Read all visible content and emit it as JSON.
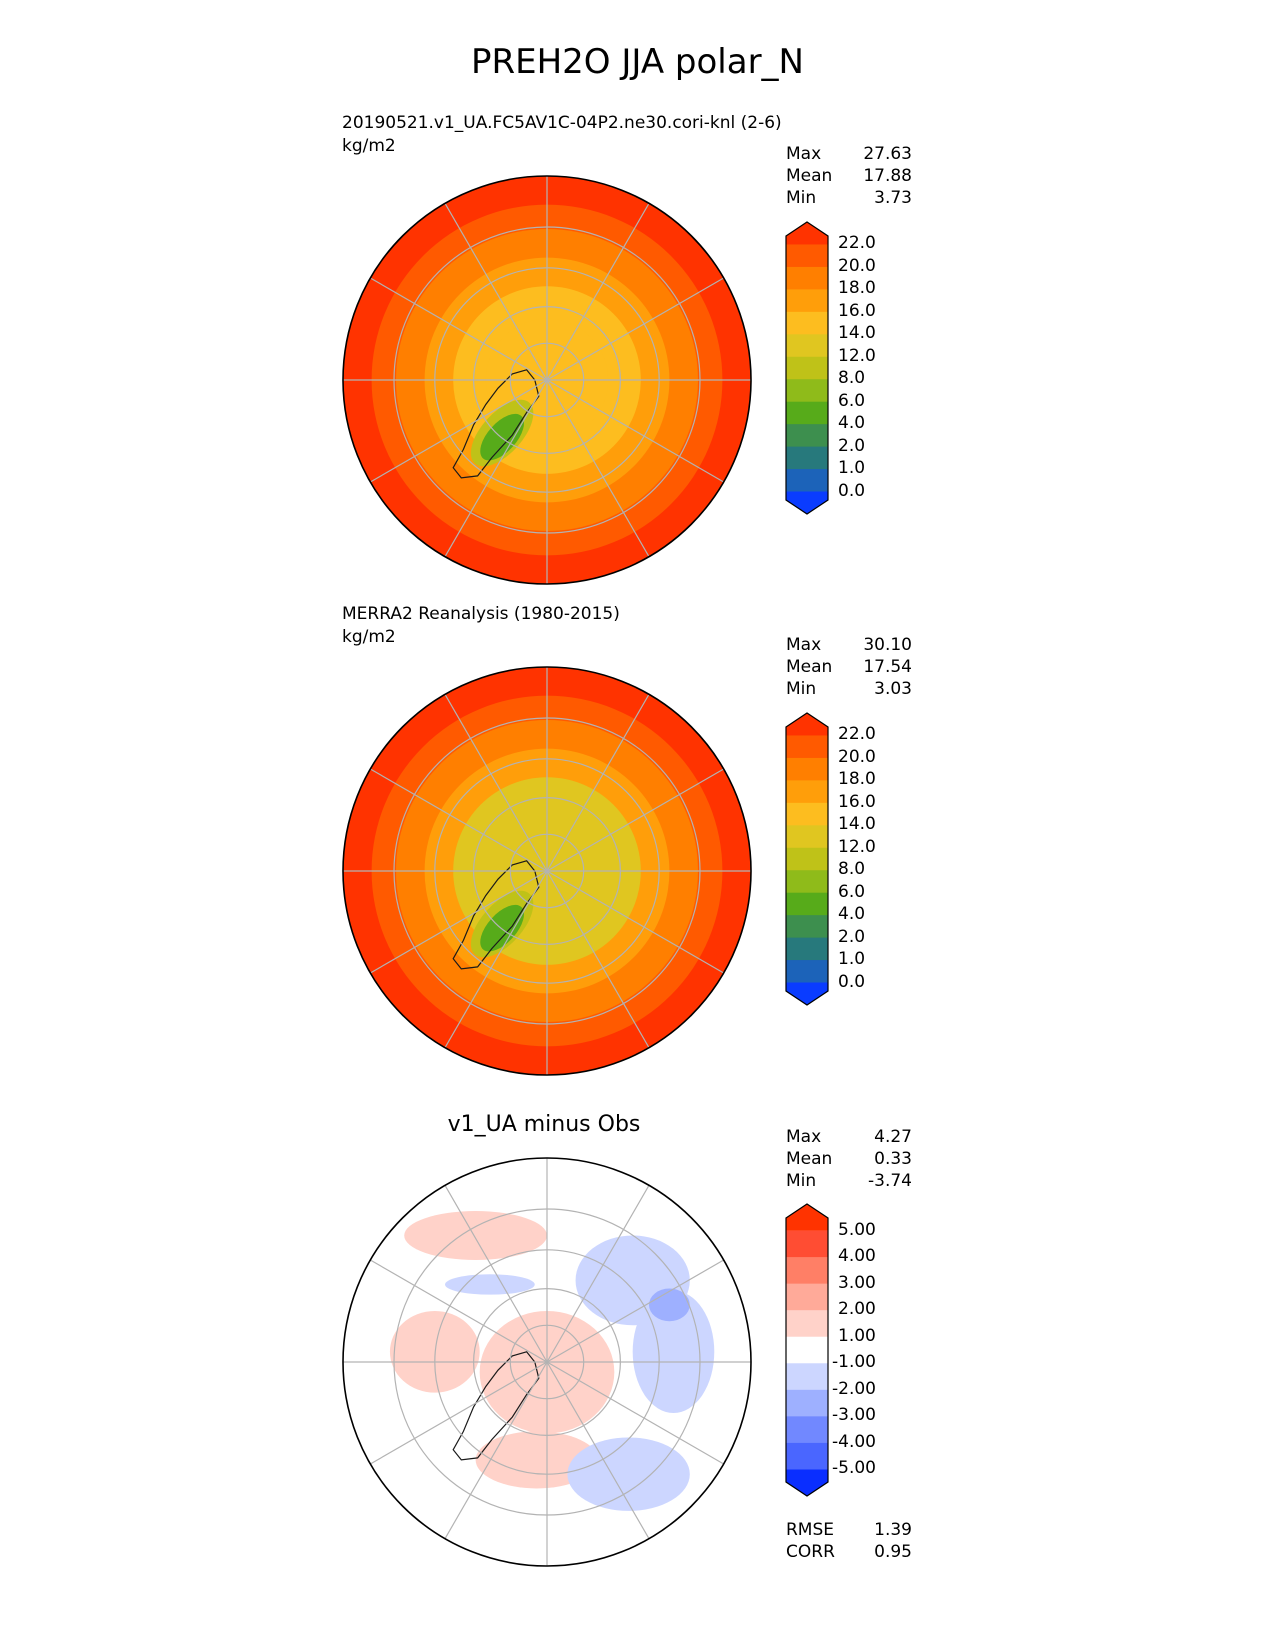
{
  "title": "PREH2O JJA polar_N",
  "chart_data": [
    {
      "type": "heatmap",
      "projection": "north-polar-stereographic",
      "title": "20190521.v1_UA.FC5AV1C-04P2.ne30.cori-knl (2-6)",
      "units": "kg/m2",
      "stats": [
        {
          "label": "Max",
          "value": "27.63"
        },
        {
          "label": "Mean",
          "value": "17.88"
        },
        {
          "label": "Min",
          "value": "3.73"
        }
      ],
      "levels": [
        "22.0",
        "20.0",
        "18.0",
        "16.0",
        "14.0",
        "12.0",
        "8.0",
        "6.0",
        "4.0",
        "2.0",
        "1.0",
        "0.0"
      ],
      "colors": [
        "#ff3300",
        "#ff5a00",
        "#ff7f00",
        "#ff9e0a",
        "#fdbd1f",
        "#e0c620",
        "#bfc218",
        "#8fbb1a",
        "#57ab1a",
        "#3d8f4e",
        "#27797c",
        "#1c63b9",
        "#0a3cff"
      ],
      "field": {
        "pole": 14,
        "ring45": 17.5,
        "ring35": 20,
        "edge": 22,
        "greenland_min": 5
      }
    },
    {
      "type": "heatmap",
      "projection": "north-polar-stereographic",
      "title": "MERRA2 Reanalysis (1980-2015)",
      "units": "kg/m2",
      "stats": [
        {
          "label": "Max",
          "value": "30.10"
        },
        {
          "label": "Mean",
          "value": "17.54"
        },
        {
          "label": "Min",
          "value": "3.03"
        }
      ],
      "levels": [
        "22.0",
        "20.0",
        "18.0",
        "16.0",
        "14.0",
        "12.0",
        "8.0",
        "6.0",
        "4.0",
        "2.0",
        "1.0",
        "0.0"
      ],
      "colors": [
        "#ff3300",
        "#ff5a00",
        "#ff7f00",
        "#ff9e0a",
        "#fdbd1f",
        "#e0c620",
        "#bfc218",
        "#8fbb1a",
        "#57ab1a",
        "#3d8f4e",
        "#27797c",
        "#1c63b9",
        "#0a3cff"
      ],
      "field": {
        "pole": 12,
        "ring45": 16.5,
        "ring35": 20,
        "edge": 23,
        "greenland_min": 4
      }
    },
    {
      "type": "heatmap",
      "projection": "north-polar-stereographic",
      "title": "v1_UA minus Obs",
      "units": "",
      "stats": [
        {
          "label": "Max",
          "value": "4.27"
        },
        {
          "label": "Mean",
          "value": "0.33"
        },
        {
          "label": "Min",
          "value": "-3.74"
        }
      ],
      "levels": [
        "5.00",
        "4.00",
        "3.00",
        "2.00",
        "1.00",
        "-1.00",
        "-2.00",
        "-3.00",
        "-4.00",
        "-5.00"
      ],
      "colors": [
        "#ff3300",
        "#ff4d33",
        "#ff7f66",
        "#ffaa99",
        "#ffd2c9",
        "#ffffff",
        "#ccd6ff",
        "#9eb0ff",
        "#7188ff",
        "#4a66ff",
        "#0a2eff"
      ],
      "footer_stats": [
        {
          "label": "RMSE",
          "value": "1.39"
        },
        {
          "label": "CORR",
          "value": "0.95"
        }
      ]
    }
  ]
}
